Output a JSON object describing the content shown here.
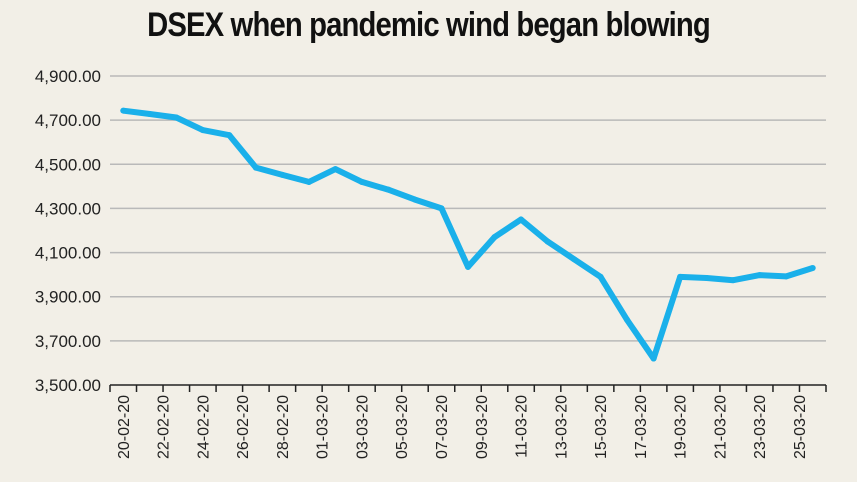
{
  "chart_data": {
    "type": "line",
    "title": "DSEX when pandemic wind began blowing",
    "xlabel": "",
    "ylabel": "",
    "ylim": [
      3500,
      4900
    ],
    "yticks": [
      3500,
      3700,
      3900,
      4100,
      4300,
      4500,
      4700,
      4900
    ],
    "ytick_labels": [
      "3,500.00",
      "3,700.00",
      "3,900.00",
      "4,100.00",
      "4,300.00",
      "4,500.00",
      "4,700.00",
      "4,900.00"
    ],
    "xtick_labels": [
      "20-02-20",
      "22-02-20",
      "24-02-20",
      "26-02-20",
      "28-02-20",
      "01-03-20",
      "03-03-20",
      "05-03-20",
      "07-03-20",
      "09-03-20",
      "11-03-20",
      "13-03-20",
      "15-03-20",
      "17-03-20",
      "19-03-20",
      "21-03-20",
      "23-03-20",
      "25-03-20"
    ],
    "grid": true,
    "line_color": "#1ab0ea",
    "series": [
      {
        "values": [
          4743,
          4728,
          4712,
          4655,
          4632,
          4485,
          4452,
          4420,
          4478,
          4420,
          4385,
          4340,
          4300,
          4035,
          4170,
          4250,
          4150,
          4070,
          3990,
          3795,
          3620,
          3990,
          3985,
          3975,
          3998,
          3992,
          4030
        ]
      }
    ]
  }
}
